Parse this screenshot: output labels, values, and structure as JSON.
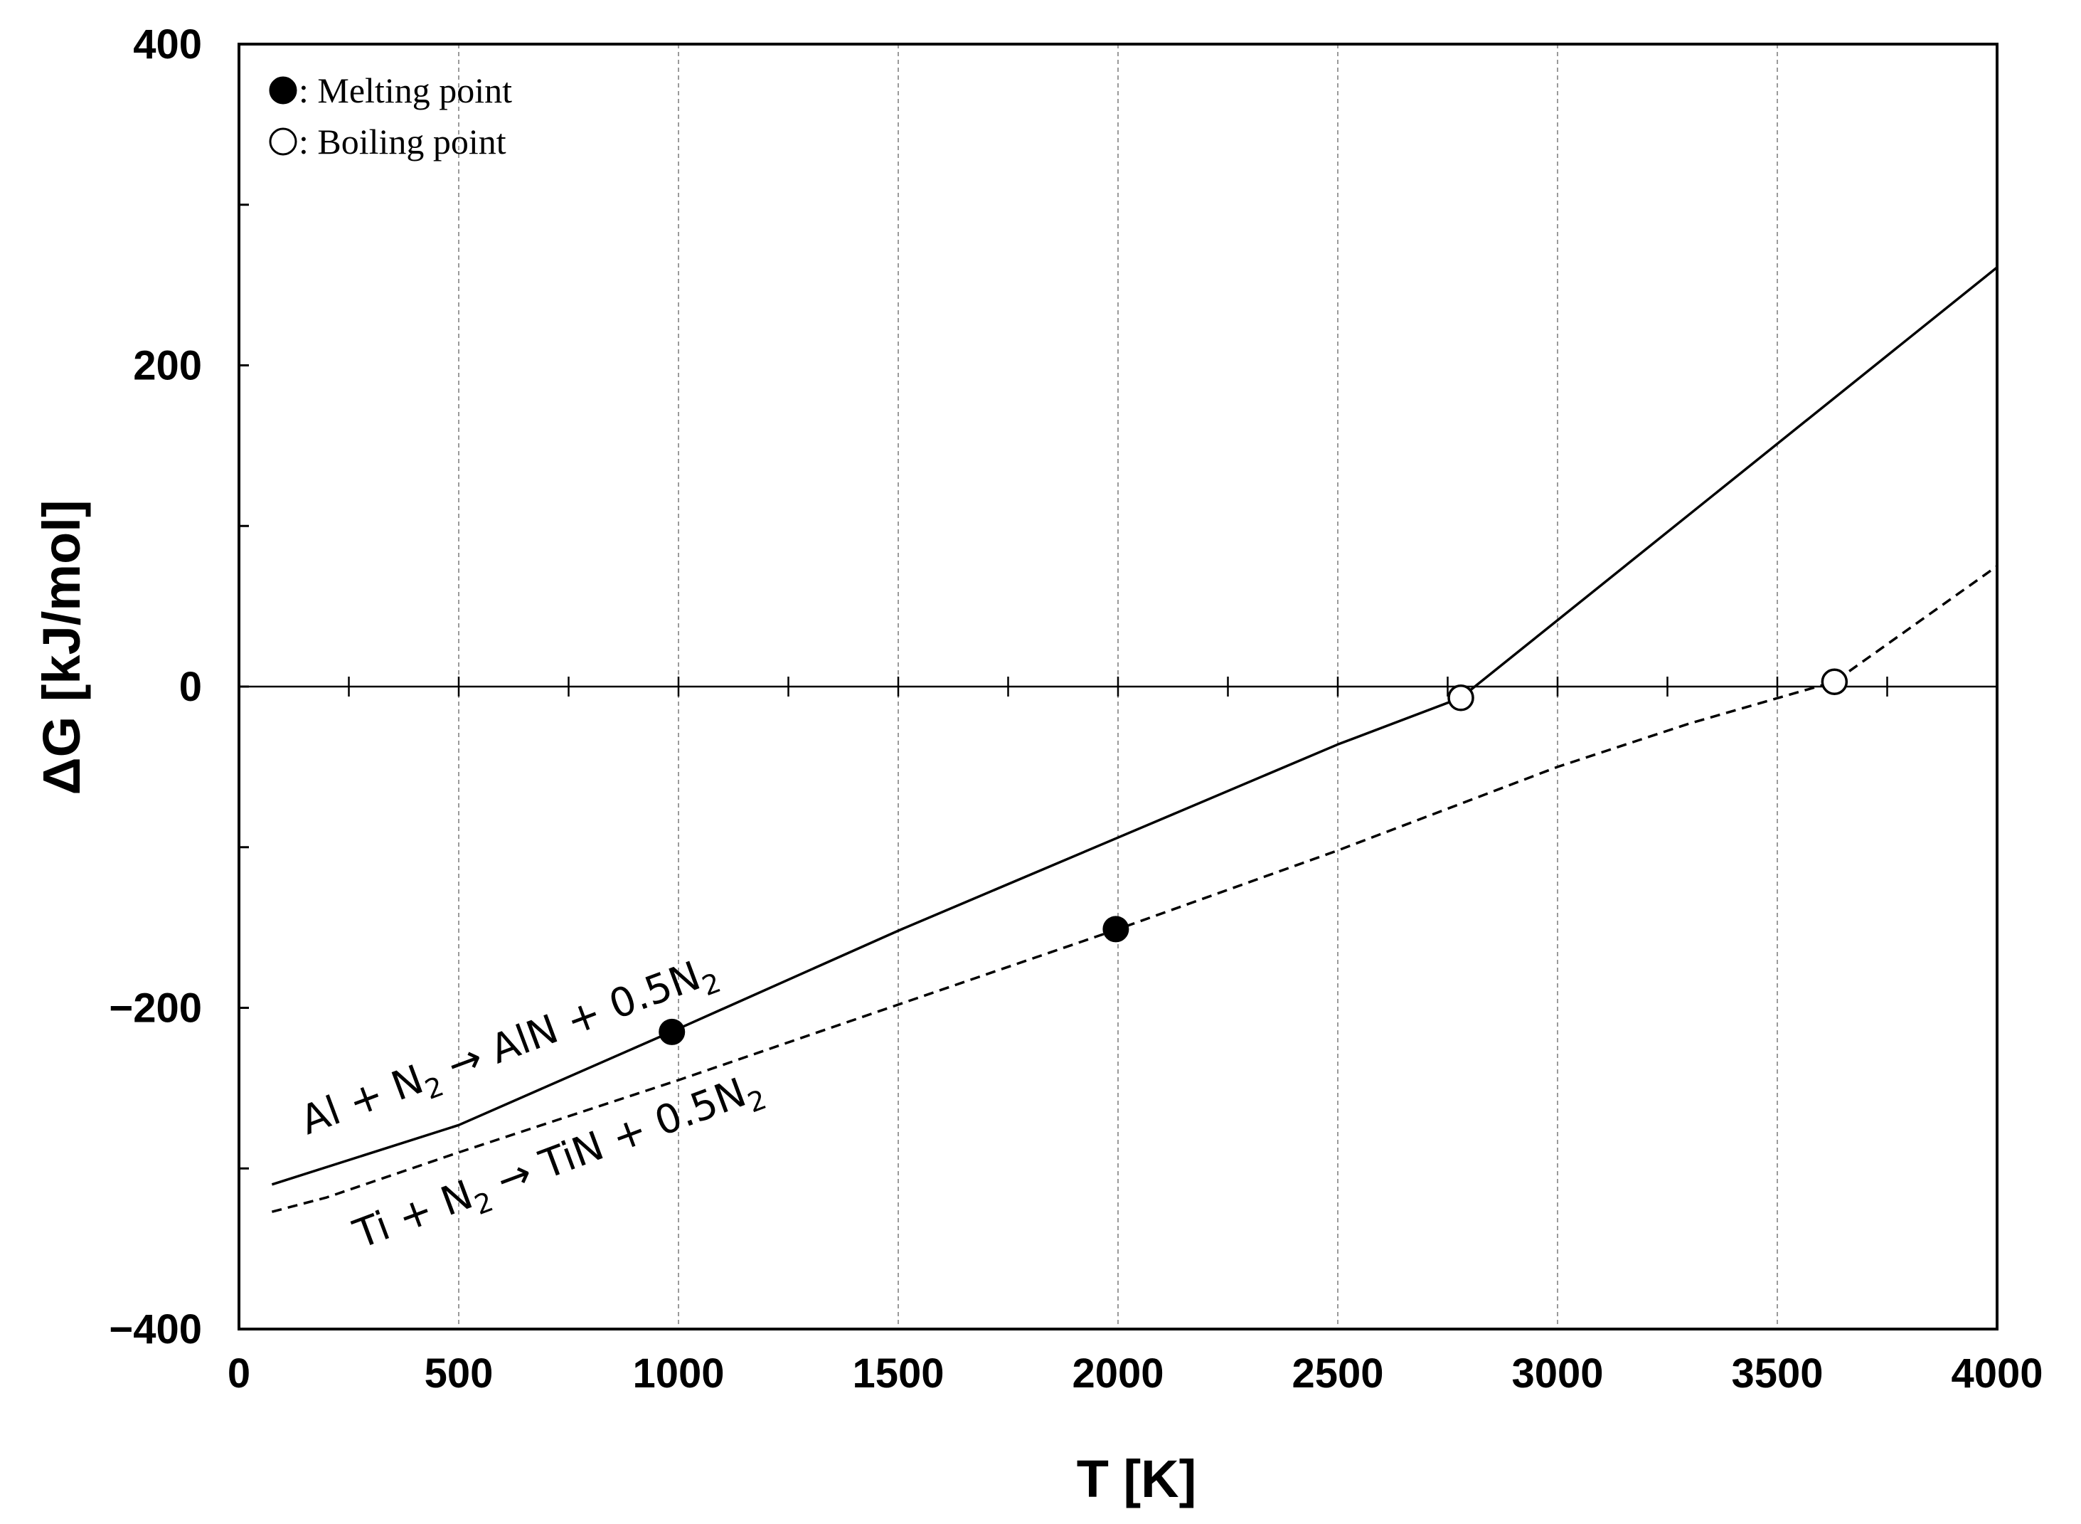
{
  "chart_data": {
    "type": "line",
    "title": "",
    "xlabel": "T [K]",
    "ylabel": "ΔG [kJ/mol]",
    "xlim": [
      0,
      4000
    ],
    "ylim": [
      -400,
      400
    ],
    "xticks": [
      0,
      500,
      1000,
      1500,
      2000,
      2500,
      3000,
      3500,
      4000
    ],
    "xtick_labels": [
      "0",
      "500",
      "1000",
      "1500",
      "2000",
      "2500",
      "3000",
      "3500",
      "4000"
    ],
    "yticks": [
      -400,
      -200,
      0,
      200,
      400
    ],
    "ytick_labels": [
      "−400",
      "−200",
      "0",
      "200",
      "400"
    ],
    "minor_xticks_on_zero_line": [
      250,
      500,
      750,
      1000,
      1250,
      1500,
      1750,
      2000,
      2250,
      2500,
      2750,
      3000,
      3250,
      3500,
      3750
    ],
    "grid": {
      "vertical_dashed": true,
      "horizontal": false
    },
    "series": [
      {
        "name": "Al + N2 → AlN + 0.5N2",
        "line_style": "solid",
        "x": [
          75,
          500,
          1000,
          1500,
          2000,
          2500,
          2780,
          4000
        ],
        "y": [
          -310,
          -273,
          -213,
          -152,
          -94,
          -36,
          -7,
          261
        ],
        "melting_point": {
          "x": 985,
          "y": -215
        },
        "boiling_point": {
          "x": 2780,
          "y": -7
        }
      },
      {
        "name": "Ti + N2 → TiN + 0.5N2",
        "line_style": "dashed",
        "x": [
          75,
          200,
          500,
          1000,
          1500,
          2000,
          2500,
          3000,
          3300,
          3630,
          4000
        ],
        "y": [
          -327,
          -318,
          -290,
          -245,
          -198,
          -151,
          -102,
          -50,
          -23,
          3,
          75
        ],
        "melting_point": {
          "x": 1995,
          "y": -151
        },
        "boiling_point": {
          "x": 3630,
          "y": 3
        }
      }
    ],
    "legend": {
      "placement": "top-left",
      "entries": [
        {
          "marker": "filled-circle",
          "label": ": Melting point"
        },
        {
          "marker": "open-circle",
          "label": ": Boiling point"
        }
      ]
    },
    "annotations": [
      {
        "series": 0,
        "parts": [
          "Al + N",
          "2",
          " → AlN + 0.5N",
          "2"
        ]
      },
      {
        "series": 1,
        "parts": [
          "Ti + N",
          "2",
          " → TiN + 0.5N",
          "2"
        ]
      }
    ]
  }
}
